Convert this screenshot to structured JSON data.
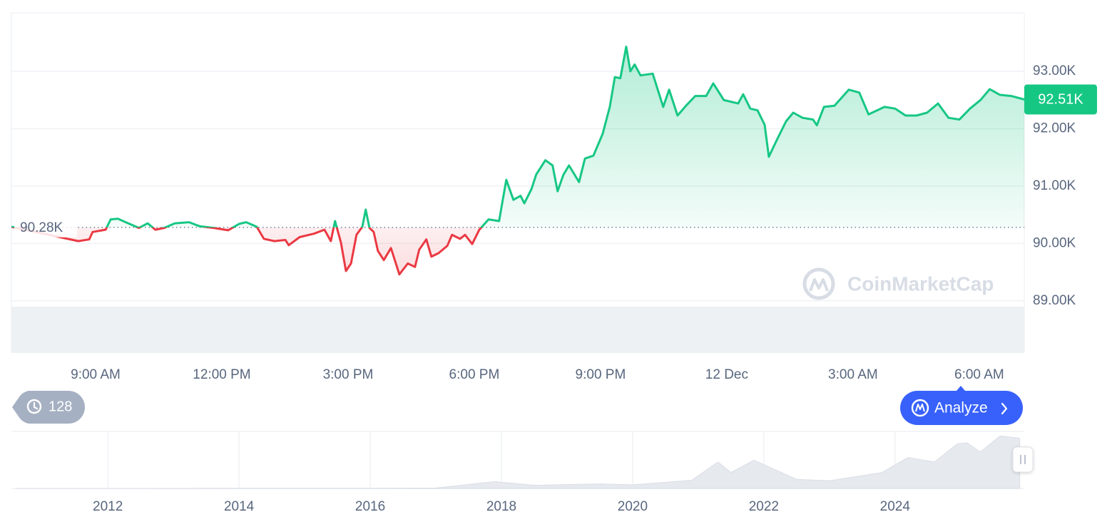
{
  "chart_data": [
    {
      "type": "line",
      "x": [
        7.0,
        8.59,
        8.85,
        8.93,
        9.24,
        9.36,
        9.53,
        9.78,
        10.03,
        10.24,
        10.42,
        10.63,
        10.88,
        11.22,
        11.47,
        11.81,
        12.15,
        12.41,
        12.58,
        12.83,
        13.0,
        13.25,
        13.51,
        13.59,
        13.85,
        14.19,
        14.44,
        14.59,
        14.69,
        14.83,
        14.95,
        15.07,
        15.2,
        15.34,
        15.42,
        15.51,
        15.61,
        15.71,
        15.85,
        16.02,
        16.22,
        16.42,
        16.59,
        16.69,
        16.86,
        16.98,
        17.15,
        17.36,
        17.47,
        17.66,
        17.78,
        17.95,
        18.12,
        18.34,
        18.59,
        18.76,
        18.93,
        19.1,
        19.19,
        19.36,
        19.47,
        19.69,
        19.86,
        19.98,
        20.12,
        20.25,
        20.49,
        20.63,
        20.83,
        21.05,
        21.22,
        21.34,
        21.47,
        21.61,
        21.71,
        21.81,
        21.95,
        22.24,
        22.49,
        22.63,
        22.83,
        23.03,
        23.25,
        23.51,
        23.68,
        23.93,
        24.27,
        24.39,
        24.56,
        24.73,
        24.9,
        25.0,
        25.2,
        25.41,
        25.58,
        25.8,
        26.05,
        26.14,
        26.31,
        26.56,
        26.9,
        27.15,
        27.37,
        27.75,
        28.0,
        28.25,
        28.51,
        28.76,
        29.02,
        29.27,
        29.53,
        29.78,
        30.03,
        30.25,
        30.49,
        30.76,
        31.07
      ],
      "values": [
        90290,
        90040,
        90070,
        90200,
        90240,
        90420,
        90430,
        90350,
        90270,
        90350,
        90240,
        90270,
        90350,
        90370,
        90300,
        90270,
        90230,
        90340,
        90370,
        90290,
        90080,
        90040,
        90060,
        89970,
        90110,
        90170,
        90240,
        90040,
        90390,
        90020,
        89520,
        89650,
        90150,
        90290,
        90590,
        90270,
        90200,
        89870,
        89710,
        89920,
        89460,
        89650,
        89590,
        89890,
        90070,
        89770,
        89830,
        89960,
        90150,
        90080,
        90150,
        89990,
        90240,
        90420,
        90390,
        91110,
        90760,
        90830,
        90700,
        90950,
        91200,
        91450,
        91360,
        90910,
        91200,
        91360,
        91070,
        91480,
        91530,
        91910,
        92380,
        92900,
        92880,
        93430,
        93000,
        93120,
        92930,
        92960,
        92380,
        92680,
        92230,
        92400,
        92570,
        92570,
        92790,
        92500,
        92440,
        92600,
        92350,
        92320,
        92070,
        91510,
        91820,
        92130,
        92280,
        92190,
        92160,
        92060,
        92380,
        92400,
        92680,
        92630,
        92250,
        92380,
        92350,
        92230,
        92230,
        92280,
        92440,
        92190,
        92160,
        92350,
        92500,
        92690,
        92590,
        92570,
        92510
      ],
      "up_color": "#16c784",
      "down_color": "#ea3943",
      "xlim": [
        7.0,
        31.07
      ],
      "xticks": [
        {
          "value": 9,
          "label": "9:00 AM"
        },
        {
          "value": 12,
          "label": "12:00 PM"
        },
        {
          "value": 15,
          "label": "3:00 PM"
        },
        {
          "value": 18,
          "label": "6:00 PM"
        },
        {
          "value": 21,
          "label": "9:00 PM"
        },
        {
          "value": 24,
          "label": "12 Dec"
        },
        {
          "value": 27,
          "label": "3:00 AM"
        },
        {
          "value": 30,
          "label": "6:00 AM"
        }
      ],
      "ylim": [
        88090,
        94020
      ],
      "yticks": [
        {
          "value": 89000,
          "label": "89.00K"
        },
        {
          "value": 90000,
          "label": "90.00K"
        },
        {
          "value": 91000,
          "label": "91.00K"
        },
        {
          "value": 92000,
          "label": "92.00K"
        },
        {
          "value": 93000,
          "label": "93.00K"
        }
      ],
      "grid": true,
      "baseline": {
        "value": 90280,
        "label": "90.28K"
      },
      "last_price": {
        "value": 92510,
        "label": "92.51K"
      }
    },
    {
      "type": "area",
      "x": [
        2010.6,
        2013.0,
        2014.0,
        2016.0,
        2017.0,
        2017.9,
        2018.5,
        2019.5,
        2020.0,
        2020.9,
        2021.3,
        2021.5,
        2021.85,
        2022.5,
        2023.0,
        2023.8,
        2024.2,
        2024.6,
        2024.95,
        2025.1,
        2025.3,
        2025.6,
        2025.9
      ],
      "values": [
        0,
        100,
        500,
        400,
        1000,
        15000,
        7000,
        10000,
        8000,
        18000,
        58000,
        35000,
        62000,
        20000,
        17000,
        35000,
        68000,
        58000,
        98000,
        100000,
        80000,
        115000,
        110000
      ],
      "color": "#e6eaef",
      "xlim": [
        2010.53,
        2025.97
      ],
      "ylim": [
        0,
        125000
      ],
      "xticks": [
        2012,
        2014,
        2016,
        2018,
        2020,
        2022,
        2024
      ]
    }
  ],
  "ui": {
    "history_count": "128",
    "analyze_button": "Analyze",
    "watermark": "CoinMarketCap"
  }
}
